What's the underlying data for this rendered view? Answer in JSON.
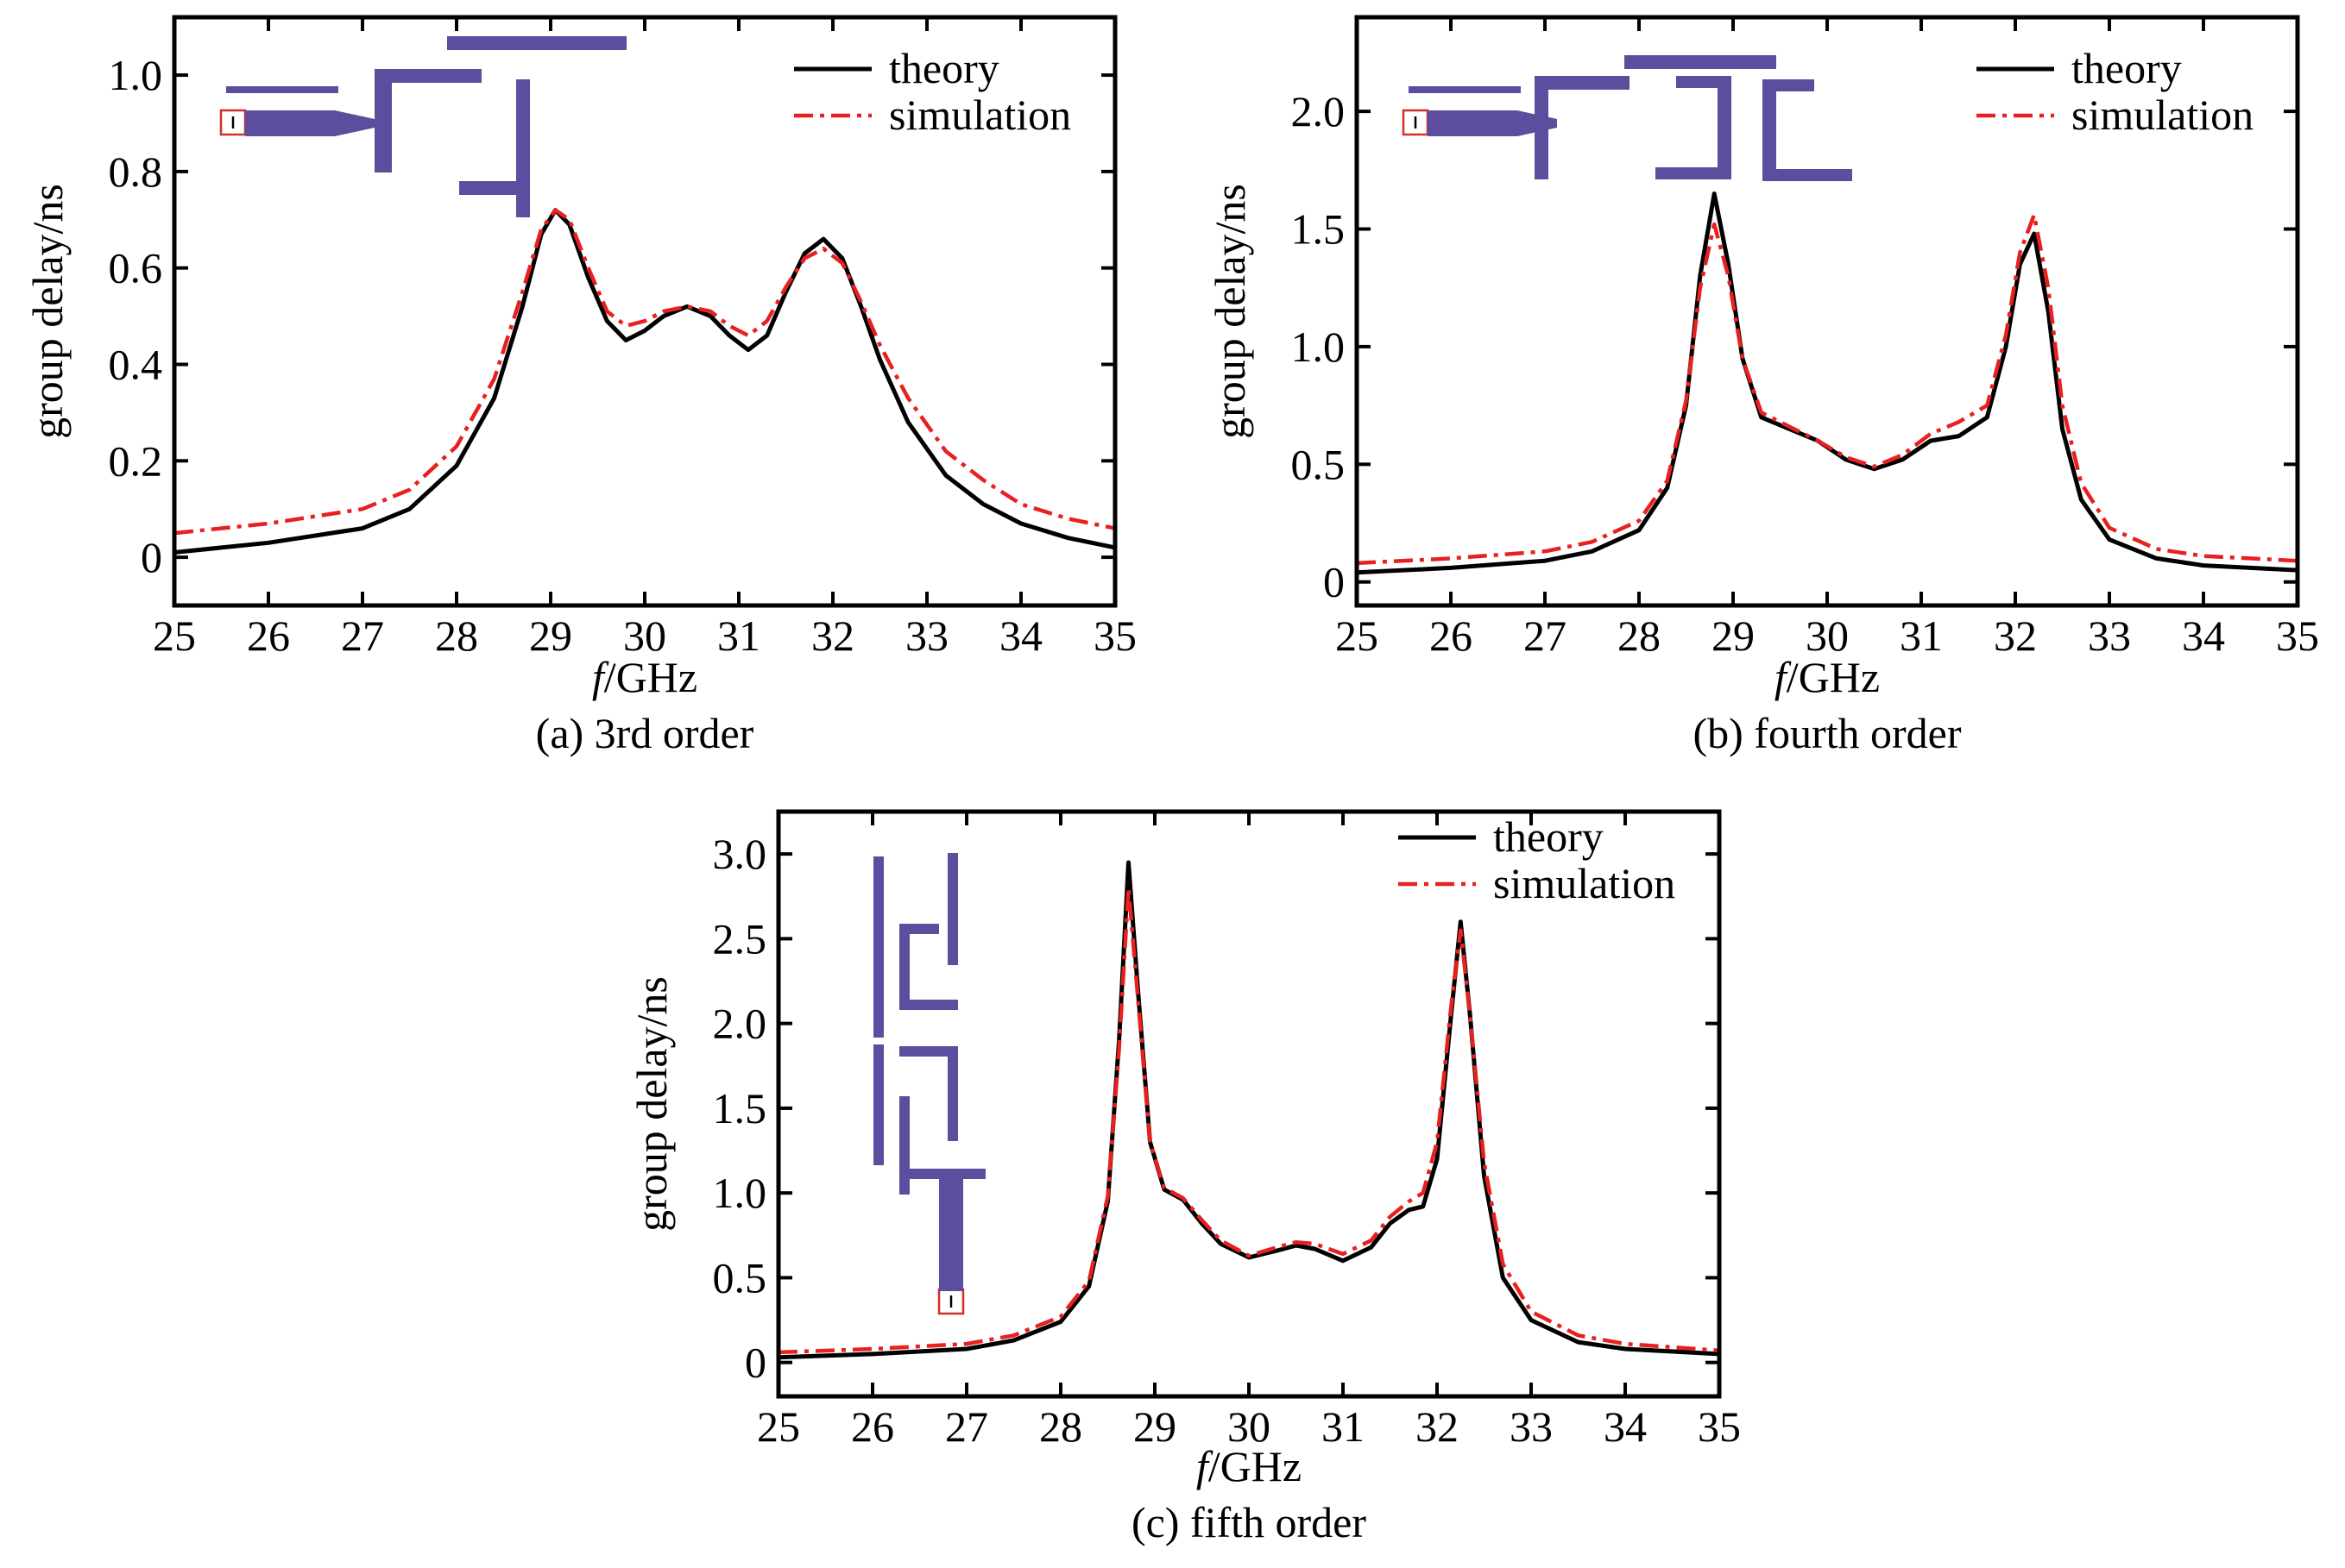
{
  "chart_data": [
    {
      "type": "line",
      "caption": "(a) 3rd order",
      "xlabel_italic": "f",
      "xlabel_rest": "/GHz",
      "ylabel": "group delay/ns",
      "xlim": [
        25,
        35
      ],
      "ylim": [
        -0.1,
        1.12
      ],
      "xticks": [
        25,
        26,
        27,
        28,
        29,
        30,
        31,
        32,
        33,
        34,
        35
      ],
      "yticks": [
        0,
        0.2,
        0.4,
        0.6,
        0.8,
        1.0
      ],
      "ytick_labels": [
        "0",
        "0.2",
        "0.4",
        "0.6",
        "0.8",
        "1.0"
      ],
      "legend_position": "top-right",
      "legend": [
        "theory",
        "simulation"
      ],
      "series": [
        {
          "name": "theory",
          "color": "#000000",
          "style": "solid",
          "x": [
            25,
            26,
            27,
            27.5,
            28,
            28.4,
            28.7,
            28.9,
            29.05,
            29.2,
            29.4,
            29.6,
            29.8,
            30.0,
            30.2,
            30.45,
            30.7,
            30.9,
            31.1,
            31.3,
            31.5,
            31.7,
            31.9,
            32.1,
            32.3,
            32.5,
            32.8,
            33.2,
            33.6,
            34,
            34.5,
            35
          ],
          "y": [
            0.01,
            0.03,
            0.06,
            0.1,
            0.19,
            0.33,
            0.52,
            0.67,
            0.72,
            0.69,
            0.58,
            0.49,
            0.45,
            0.47,
            0.5,
            0.52,
            0.5,
            0.46,
            0.43,
            0.46,
            0.55,
            0.63,
            0.66,
            0.62,
            0.52,
            0.41,
            0.28,
            0.17,
            0.11,
            0.07,
            0.04,
            0.02
          ]
        },
        {
          "name": "simulation",
          "color": "#e8201f",
          "style": "dash-dot",
          "x": [
            25,
            26,
            27,
            27.5,
            28,
            28.4,
            28.7,
            28.9,
            29.05,
            29.2,
            29.4,
            29.6,
            29.8,
            30.0,
            30.2,
            30.45,
            30.7,
            30.9,
            31.1,
            31.3,
            31.5,
            31.7,
            31.9,
            32.1,
            32.3,
            32.5,
            32.8,
            33.2,
            33.6,
            34,
            34.5,
            35
          ],
          "y": [
            0.05,
            0.07,
            0.1,
            0.14,
            0.23,
            0.37,
            0.55,
            0.68,
            0.72,
            0.7,
            0.6,
            0.51,
            0.48,
            0.49,
            0.51,
            0.52,
            0.51,
            0.48,
            0.46,
            0.49,
            0.56,
            0.62,
            0.64,
            0.61,
            0.53,
            0.44,
            0.33,
            0.22,
            0.16,
            0.11,
            0.08,
            0.06
          ]
        }
      ]
    },
    {
      "type": "line",
      "caption": "(b) fourth order",
      "xlabel_italic": "f",
      "xlabel_rest": "/GHz",
      "ylabel": "group delay/ns",
      "xlim": [
        25,
        35
      ],
      "ylim": [
        -0.1,
        2.4
      ],
      "xticks": [
        25,
        26,
        27,
        28,
        29,
        30,
        31,
        32,
        33,
        34,
        35
      ],
      "yticks": [
        0,
        0.5,
        1.0,
        1.5,
        2.0
      ],
      "ytick_labels": [
        "0",
        "0.5",
        "1.0",
        "1.5",
        "2.0"
      ],
      "legend_position": "top-right",
      "legend": [
        "theory",
        "simulation"
      ],
      "series": [
        {
          "name": "theory",
          "color": "#000000",
          "style": "solid",
          "x": [
            25,
            26,
            27,
            27.5,
            28,
            28.3,
            28.5,
            28.65,
            28.8,
            28.95,
            29.1,
            29.3,
            29.6,
            29.9,
            30.2,
            30.5,
            30.8,
            31.1,
            31.4,
            31.7,
            31.9,
            32.05,
            32.2,
            32.35,
            32.5,
            32.7,
            33,
            33.5,
            34,
            35
          ],
          "y": [
            0.04,
            0.06,
            0.09,
            0.13,
            0.22,
            0.4,
            0.75,
            1.3,
            1.65,
            1.35,
            0.95,
            0.7,
            0.65,
            0.6,
            0.52,
            0.48,
            0.52,
            0.6,
            0.62,
            0.7,
            1.0,
            1.35,
            1.48,
            1.15,
            0.65,
            0.35,
            0.18,
            0.1,
            0.07,
            0.05
          ]
        },
        {
          "name": "simulation",
          "color": "#e8201f",
          "style": "dash-dot",
          "x": [
            25,
            26,
            27,
            27.5,
            28,
            28.3,
            28.5,
            28.65,
            28.8,
            28.95,
            29.1,
            29.3,
            29.6,
            29.9,
            30.2,
            30.5,
            30.8,
            31.1,
            31.4,
            31.7,
            31.9,
            32.05,
            32.2,
            32.35,
            32.5,
            32.7,
            33,
            33.5,
            34,
            35
          ],
          "y": [
            0.08,
            0.1,
            0.13,
            0.17,
            0.26,
            0.43,
            0.77,
            1.25,
            1.52,
            1.3,
            0.95,
            0.72,
            0.66,
            0.6,
            0.53,
            0.49,
            0.54,
            0.63,
            0.68,
            0.75,
            1.05,
            1.4,
            1.56,
            1.25,
            0.75,
            0.42,
            0.23,
            0.14,
            0.11,
            0.09
          ]
        }
      ]
    },
    {
      "type": "line",
      "caption": "(c) fifth order",
      "xlabel_italic": "f",
      "xlabel_rest": "/GHz",
      "ylabel": "group delay/ns",
      "xlim": [
        25,
        35
      ],
      "ylim": [
        -0.2,
        3.25
      ],
      "xticks": [
        25,
        26,
        27,
        28,
        29,
        30,
        31,
        32,
        33,
        34,
        35
      ],
      "yticks": [
        0,
        0.5,
        1.0,
        1.5,
        2.0,
        2.5,
        3.0
      ],
      "ytick_labels": [
        "0",
        "0.5",
        "1.0",
        "1.5",
        "2.0",
        "2.5",
        "3.0"
      ],
      "legend_position": "top-right",
      "legend": [
        "theory",
        "simulation"
      ],
      "series": [
        {
          "name": "theory",
          "color": "#000000",
          "style": "solid",
          "x": [
            25,
            26,
            27,
            27.5,
            28,
            28.3,
            28.5,
            28.62,
            28.72,
            28.82,
            28.95,
            29.1,
            29.3,
            29.5,
            29.7,
            30,
            30.3,
            30.5,
            30.7,
            31,
            31.3,
            31.5,
            31.7,
            31.85,
            32.0,
            32.15,
            32.25,
            32.35,
            32.5,
            32.7,
            33,
            33.5,
            34,
            35
          ],
          "y": [
            0.03,
            0.05,
            0.08,
            0.13,
            0.24,
            0.45,
            0.95,
            1.9,
            2.95,
            2.2,
            1.3,
            1.02,
            0.96,
            0.82,
            0.7,
            0.62,
            0.66,
            0.69,
            0.67,
            0.6,
            0.68,
            0.82,
            0.9,
            0.92,
            1.2,
            2.05,
            2.6,
            2.05,
            1.1,
            0.5,
            0.25,
            0.12,
            0.08,
            0.05
          ]
        },
        {
          "name": "simulation",
          "color": "#e8201f",
          "style": "dash-dot",
          "x": [
            25,
            26,
            27,
            27.5,
            28,
            28.3,
            28.5,
            28.62,
            28.72,
            28.82,
            28.95,
            29.1,
            29.3,
            29.5,
            29.7,
            30,
            30.3,
            30.5,
            30.7,
            31,
            31.3,
            31.5,
            31.7,
            31.85,
            32.0,
            32.15,
            32.25,
            32.35,
            32.5,
            32.7,
            33,
            33.5,
            34,
            35
          ],
          "y": [
            0.06,
            0.08,
            0.11,
            0.16,
            0.27,
            0.48,
            0.98,
            1.85,
            2.8,
            2.15,
            1.3,
            1.03,
            0.97,
            0.84,
            0.72,
            0.63,
            0.68,
            0.71,
            0.7,
            0.64,
            0.72,
            0.86,
            0.95,
            1.0,
            1.3,
            2.1,
            2.55,
            2.05,
            1.18,
            0.58,
            0.3,
            0.16,
            0.11,
            0.07
          ]
        }
      ]
    }
  ]
}
